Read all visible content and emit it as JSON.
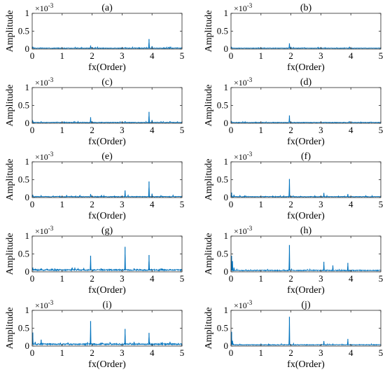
{
  "chart_data": [
    {
      "type": "line",
      "title": "(a)",
      "xlabel": "fx(Order)",
      "ylabel": "Amplitude",
      "xlim": [
        0,
        5
      ],
      "ylim": [
        0,
        1
      ],
      "y_multiplier": "×10",
      "y_exponent": "-3",
      "xticks": [
        "0",
        "1",
        "2",
        "3",
        "4",
        "5"
      ],
      "yticks": [
        "0",
        "0.5",
        "1"
      ],
      "color": "#0072BD",
      "baseline": 0.02,
      "noise": 0.012,
      "peaks": [
        [
          0.02,
          0.06
        ],
        [
          0.06,
          0.04
        ],
        [
          0.3,
          0.04
        ],
        [
          1.95,
          0.1
        ],
        [
          2.0,
          0.04
        ],
        [
          3.1,
          0.04
        ],
        [
          3.9,
          0.28
        ],
        [
          4.0,
          0.08
        ],
        [
          4.55,
          0.05
        ],
        [
          4.8,
          0.04
        ]
      ]
    },
    {
      "type": "line",
      "title": "(b)",
      "xlabel": "fx(Order)",
      "ylabel": "Amplitude",
      "xlim": [
        0,
        5
      ],
      "ylim": [
        0,
        1
      ],
      "y_multiplier": "×10",
      "y_exponent": "-3",
      "xticks": [
        "0",
        "1",
        "2",
        "3",
        "4",
        "5"
      ],
      "yticks": [
        "0",
        "0.5",
        "1"
      ],
      "color": "#0072BD",
      "baseline": 0.02,
      "noise": 0.01,
      "peaks": [
        [
          0.02,
          0.05
        ],
        [
          0.3,
          0.03
        ],
        [
          1.95,
          0.16
        ],
        [
          2.0,
          0.05
        ],
        [
          3.1,
          0.03
        ],
        [
          3.95,
          0.06
        ],
        [
          4.5,
          0.03
        ]
      ]
    },
    {
      "type": "line",
      "title": "(c)",
      "xlabel": "fx(Order)",
      "ylabel": "Amplitude",
      "xlim": [
        0,
        5
      ],
      "ylim": [
        0,
        1
      ],
      "y_multiplier": "×10",
      "y_exponent": "-3",
      "xticks": [
        "0",
        "1",
        "2",
        "3",
        "4",
        "5"
      ],
      "yticks": [
        "0",
        "0.5",
        "1"
      ],
      "color": "#0072BD",
      "baseline": 0.02,
      "noise": 0.012,
      "peaks": [
        [
          0.02,
          0.07
        ],
        [
          0.3,
          0.05
        ],
        [
          1.95,
          0.17
        ],
        [
          3.1,
          0.06
        ],
        [
          3.9,
          0.32
        ],
        [
          4.0,
          0.09
        ],
        [
          4.3,
          0.05
        ],
        [
          4.6,
          0.06
        ],
        [
          4.85,
          0.05
        ]
      ]
    },
    {
      "type": "line",
      "title": "(d)",
      "xlabel": "fx(Order)",
      "ylabel": "Amplitude",
      "xlim": [
        0,
        5
      ],
      "ylim": [
        0,
        1
      ],
      "y_multiplier": "×10",
      "y_exponent": "-3",
      "xticks": [
        "0",
        "1",
        "2",
        "3",
        "4",
        "5"
      ],
      "yticks": [
        "0",
        "0.5",
        "1"
      ],
      "color": "#0072BD",
      "baseline": 0.02,
      "noise": 0.01,
      "peaks": [
        [
          0.02,
          0.05
        ],
        [
          0.3,
          0.03
        ],
        [
          1.95,
          0.22
        ],
        [
          3.1,
          0.03
        ],
        [
          3.95,
          0.05
        ],
        [
          4.5,
          0.03
        ]
      ]
    },
    {
      "type": "line",
      "title": "(e)",
      "xlabel": "fx(Order)",
      "ylabel": "Amplitude",
      "xlim": [
        0,
        5
      ],
      "ylim": [
        0,
        1
      ],
      "y_multiplier": "×10",
      "y_exponent": "-3",
      "xticks": [
        "0",
        "1",
        "2",
        "3",
        "4",
        "5"
      ],
      "yticks": [
        "0",
        "0.5",
        "1"
      ],
      "color": "#0072BD",
      "baseline": 0.02,
      "noise": 0.014,
      "peaks": [
        [
          0.02,
          0.08
        ],
        [
          0.3,
          0.06
        ],
        [
          0.7,
          0.05
        ],
        [
          1.15,
          0.07
        ],
        [
          1.95,
          0.1
        ],
        [
          2.3,
          0.05
        ],
        [
          3.1,
          0.2
        ],
        [
          3.2,
          0.07
        ],
        [
          3.9,
          0.45
        ],
        [
          4.0,
          0.1
        ],
        [
          4.3,
          0.06
        ],
        [
          4.7,
          0.07
        ]
      ]
    },
    {
      "type": "line",
      "title": "(f)",
      "xlabel": "fx(Order)",
      "ylabel": "Amplitude",
      "xlim": [
        0,
        5
      ],
      "ylim": [
        0,
        1
      ],
      "y_multiplier": "×10",
      "y_exponent": "-3",
      "xticks": [
        "0",
        "1",
        "2",
        "3",
        "4",
        "5"
      ],
      "yticks": [
        "0",
        "0.5",
        "1"
      ],
      "color": "#0072BD",
      "baseline": 0.02,
      "noise": 0.012,
      "peaks": [
        [
          0.02,
          0.14
        ],
        [
          0.1,
          0.08
        ],
        [
          0.3,
          0.06
        ],
        [
          1.95,
          0.52
        ],
        [
          3.1,
          0.13
        ],
        [
          3.9,
          0.1
        ],
        [
          4.5,
          0.05
        ]
      ]
    },
    {
      "type": "line",
      "title": "(g)",
      "xlabel": "fx(Order)",
      "ylabel": "Amplitude",
      "xlim": [
        0,
        5
      ],
      "ylim": [
        0,
        1
      ],
      "y_multiplier": "×10",
      "y_exponent": "-3",
      "xticks": [
        "0",
        "1",
        "2",
        "3",
        "4",
        "5"
      ],
      "yticks": [
        "0",
        "0.5",
        "1"
      ],
      "color": "#0072BD",
      "baseline": 0.04,
      "noise": 0.03,
      "peaks": [
        [
          0.02,
          0.12
        ],
        [
          0.1,
          0.08
        ],
        [
          0.3,
          0.1
        ],
        [
          0.5,
          0.08
        ],
        [
          1.95,
          0.45
        ],
        [
          2.3,
          0.1
        ],
        [
          2.6,
          0.08
        ],
        [
          3.1,
          0.7
        ],
        [
          3.4,
          0.1
        ],
        [
          3.9,
          0.47
        ],
        [
          4.3,
          0.1
        ],
        [
          4.6,
          0.08
        ]
      ]
    },
    {
      "type": "line",
      "title": "(h)",
      "xlabel": "fx(Order)",
      "ylabel": "Amplitude",
      "xlim": [
        0,
        5
      ],
      "ylim": [
        0,
        1
      ],
      "y_multiplier": "×10",
      "y_exponent": "-3",
      "xticks": [
        "0",
        "1",
        "2",
        "3",
        "4",
        "5"
      ],
      "yticks": [
        "0",
        "0.5",
        "1"
      ],
      "color": "#0072BD",
      "baseline": 0.03,
      "noise": 0.02,
      "peaks": [
        [
          0.02,
          0.45
        ],
        [
          0.05,
          0.3
        ],
        [
          0.1,
          0.12
        ],
        [
          0.5,
          0.06
        ],
        [
          1.95,
          0.75
        ],
        [
          3.1,
          0.28
        ],
        [
          3.4,
          0.18
        ],
        [
          3.9,
          0.25
        ],
        [
          4.3,
          0.06
        ]
      ]
    },
    {
      "type": "line",
      "title": "(i)",
      "xlabel": "fx(Order)",
      "ylabel": "Amplitude",
      "xlim": [
        0,
        5
      ],
      "ylim": [
        0,
        1
      ],
      "y_multiplier": "×10",
      "y_exponent": "-3",
      "xticks": [
        "0",
        "1",
        "2",
        "3",
        "4",
        "5"
      ],
      "yticks": [
        "0",
        "0.5",
        "1"
      ],
      "color": "#0072BD",
      "baseline": 0.04,
      "noise": 0.03,
      "peaks": [
        [
          0.02,
          0.38
        ],
        [
          0.1,
          0.12
        ],
        [
          0.3,
          0.18
        ],
        [
          0.6,
          0.08
        ],
        [
          1.95,
          0.7
        ],
        [
          2.3,
          0.1
        ],
        [
          3.1,
          0.48
        ],
        [
          3.4,
          0.12
        ],
        [
          3.9,
          0.37
        ],
        [
          4.3,
          0.1
        ],
        [
          4.6,
          0.12
        ]
      ]
    },
    {
      "type": "line",
      "title": "(j)",
      "xlabel": "fx(Order)",
      "ylabel": "Amplitude",
      "xlim": [
        0,
        5
      ],
      "ylim": [
        0,
        1
      ],
      "y_multiplier": "×10",
      "y_exponent": "-3",
      "xticks": [
        "0",
        "1",
        "2",
        "3",
        "4",
        "5"
      ],
      "yticks": [
        "0",
        "0.5",
        "1"
      ],
      "color": "#0072BD",
      "baseline": 0.03,
      "noise": 0.015,
      "peaks": [
        [
          0.02,
          0.4
        ],
        [
          0.05,
          0.15
        ],
        [
          0.3,
          0.06
        ],
        [
          1.95,
          0.82
        ],
        [
          3.1,
          0.14
        ],
        [
          3.9,
          0.2
        ],
        [
          4.3,
          0.05
        ]
      ]
    }
  ]
}
